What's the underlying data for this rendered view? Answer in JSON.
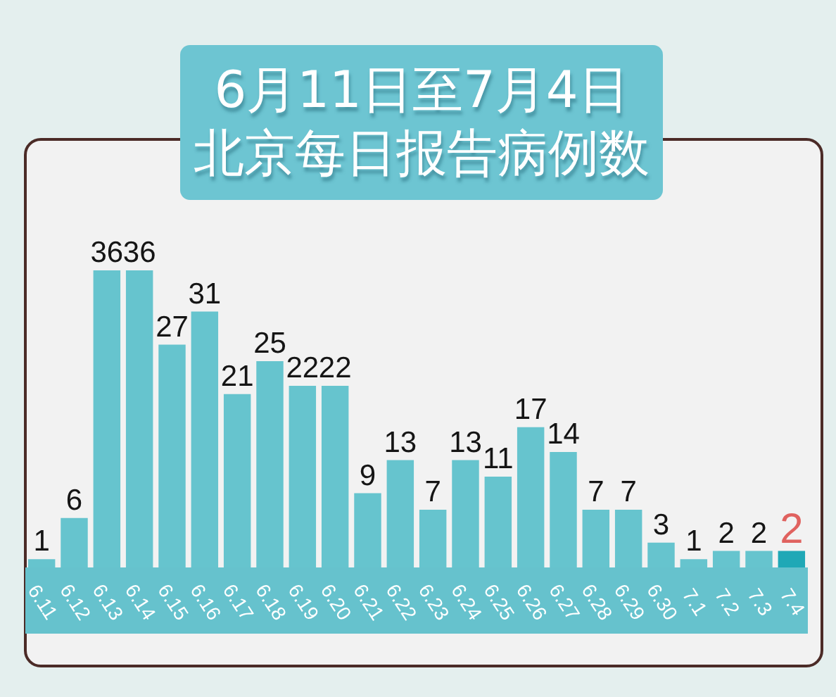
{
  "chart_data": {
    "type": "bar",
    "title": "6月11日至7月4日",
    "subtitle": "北京每日报告病例数",
    "categories": [
      "6.11",
      "6.12",
      "6.13",
      "6.14",
      "6.15",
      "6.16",
      "6.17",
      "6.18",
      "6.19",
      "6.20",
      "6.21",
      "6.22",
      "6.23",
      "6.24",
      "6.25",
      "6.26",
      "6.27",
      "6.28",
      "6.29",
      "6.30",
      "7.1",
      "7.2",
      "7.3",
      "7.4"
    ],
    "values": [
      1,
      6,
      36,
      36,
      27,
      31,
      21,
      25,
      22,
      22,
      9,
      13,
      7,
      13,
      11,
      17,
      14,
      7,
      7,
      3,
      1,
      2,
      2,
      2
    ],
    "colors": [
      "#66c4ce",
      "#66c4ce",
      "#66c4ce",
      "#66c4ce",
      "#66c4ce",
      "#66c4ce",
      "#66c4ce",
      "#66c4ce",
      "#66c4ce",
      "#66c4ce",
      "#66c4ce",
      "#66c4ce",
      "#66c4ce",
      "#66c4ce",
      "#66c4ce",
      "#66c4ce",
      "#66c4ce",
      "#66c4ce",
      "#66c4ce",
      "#66c4ce",
      "#66c4ce",
      "#66c4ce",
      "#66c4ce",
      "#20a8b6"
    ],
    "data_labels": true
  }
}
